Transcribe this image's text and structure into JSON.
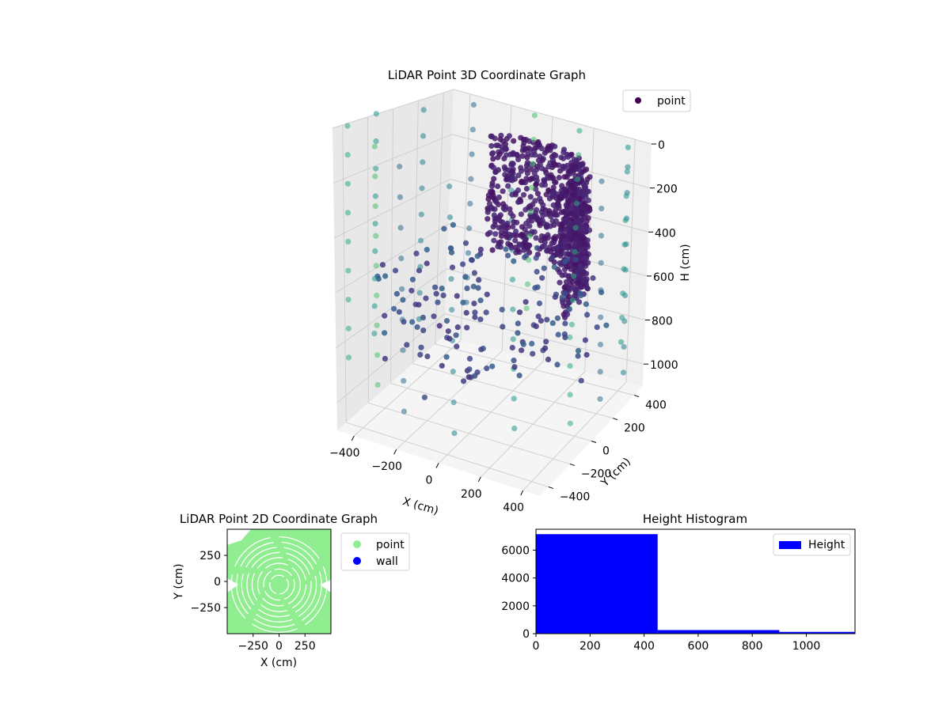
{
  "chart_data": [
    {
      "type": "scatter3d",
      "title": "LiDAR Point 3D Coordinate Graph",
      "xlabel": "X (cm)",
      "ylabel": "Y (cm)",
      "zlabel": "H (cm)",
      "x_ticks": [
        -400,
        -200,
        0,
        200,
        400
      ],
      "y_ticks": [
        -400,
        -200,
        0,
        200,
        400
      ],
      "z_ticks": [
        0,
        200,
        400,
        600,
        800,
        1000
      ],
      "x_tick_labels": [
        "−400",
        "−200",
        "0",
        "200",
        "400"
      ],
      "y_tick_labels": [
        "−400",
        "−200",
        "0",
        "200",
        "400"
      ],
      "z_tick_labels": [
        "0",
        "200",
        "400",
        "600",
        "800",
        "1000"
      ],
      "xlim": [
        -480,
        480
      ],
      "ylim": [
        -480,
        480
      ],
      "zlim": [
        0,
        1100
      ],
      "z_inverted": true,
      "legend": [
        "point"
      ],
      "legend_position": "top-right",
      "grid": true,
      "colormap": "viridis"
    },
    {
      "type": "scatter",
      "title": "LiDAR Point 2D Coordinate Graph",
      "xlabel": "X (cm)",
      "ylabel": "Y (cm)",
      "x_ticks": [
        -250,
        0,
        250
      ],
      "y_ticks": [
        -250,
        0,
        250
      ],
      "x_tick_labels": [
        "−250",
        "0",
        "250"
      ],
      "y_tick_labels": [
        "−250",
        "0",
        "250"
      ],
      "xlim": [
        -500,
        500
      ],
      "ylim": [
        -500,
        500
      ],
      "series": [
        {
          "name": "point",
          "color": "#90ee90"
        },
        {
          "name": "wall",
          "color": "#0000ff"
        }
      ],
      "legend_position": "outside-right",
      "grid": false
    },
    {
      "type": "bar",
      "title": "Height Histogram",
      "bins": [
        {
          "start": 0,
          "end": 450,
          "count": 7150
        },
        {
          "start": 450,
          "end": 900,
          "count": 260
        },
        {
          "start": 900,
          "end": 1180,
          "count": 130
        }
      ],
      "x_ticks": [
        0,
        200,
        400,
        600,
        800,
        1000
      ],
      "y_ticks": [
        0,
        2000,
        4000,
        6000
      ],
      "x_tick_labels": [
        "0",
        "200",
        "400",
        "600",
        "800",
        "1000"
      ],
      "y_tick_labels": [
        "0",
        "2000",
        "4000",
        "6000"
      ],
      "xlim": [
        0,
        1180
      ],
      "ylim": [
        0,
        7500
      ],
      "legend": [
        "Height"
      ],
      "legend_position": "top-right",
      "color": "#0000ff",
      "grid": false
    }
  ]
}
